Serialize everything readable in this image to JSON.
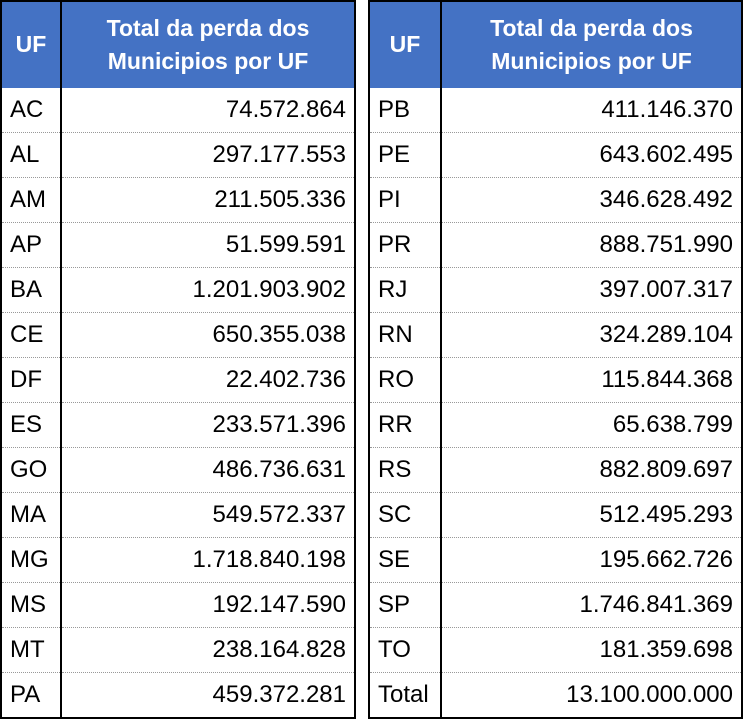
{
  "tables": [
    {
      "header": [
        "UF",
        "Total da perda dos Municipios por UF"
      ],
      "rows": [
        [
          "AC",
          "74.572.864"
        ],
        [
          "AL",
          "297.177.553"
        ],
        [
          "AM",
          "211.505.336"
        ],
        [
          "AP",
          "51.599.591"
        ],
        [
          "BA",
          "1.201.903.902"
        ],
        [
          "CE",
          "650.355.038"
        ],
        [
          "DF",
          "22.402.736"
        ],
        [
          "ES",
          "233.571.396"
        ],
        [
          "GO",
          "486.736.631"
        ],
        [
          "MA",
          "549.572.337"
        ],
        [
          "MG",
          "1.718.840.198"
        ],
        [
          "MS",
          "192.147.590"
        ],
        [
          "MT",
          "238.164.828"
        ],
        [
          "PA",
          "459.372.281"
        ]
      ]
    },
    {
      "header": [
        "UF",
        "Total da perda dos Municipios por UF"
      ],
      "rows": [
        [
          "PB",
          "411.146.370"
        ],
        [
          "PE",
          "643.602.495"
        ],
        [
          "PI",
          "346.628.492"
        ],
        [
          "PR",
          "888.751.990"
        ],
        [
          "RJ",
          "397.007.317"
        ],
        [
          "RN",
          "324.289.104"
        ],
        [
          "RO",
          "115.844.368"
        ],
        [
          "RR",
          "65.638.799"
        ],
        [
          "RS",
          "882.809.697"
        ],
        [
          "SC",
          "512.495.293"
        ],
        [
          "SE",
          "195.662.726"
        ],
        [
          "SP",
          "1.746.841.369"
        ],
        [
          "TO",
          "181.359.698"
        ],
        [
          "Total",
          "13.100.000.000"
        ]
      ]
    }
  ]
}
